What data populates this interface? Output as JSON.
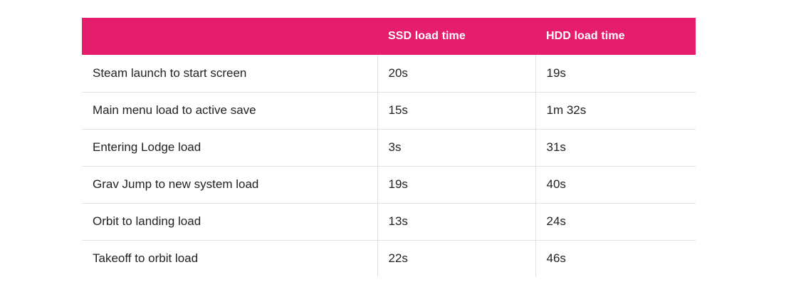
{
  "table": {
    "headers": [
      "",
      "SSD load time",
      "HDD load time"
    ],
    "rows": [
      [
        "Steam launch to start screen",
        "20s",
        "19s"
      ],
      [
        "Main menu load to active save",
        "15s",
        "1m 32s"
      ],
      [
        "Entering Lodge load",
        "3s",
        "31s"
      ],
      [
        "Grav Jump to new system load",
        "19s",
        "40s"
      ],
      [
        "Orbit to landing load",
        "13s",
        "24s"
      ],
      [
        "Takeoff to orbit load",
        "22s",
        "46s"
      ]
    ]
  },
  "colors": {
    "header_background": "#e61c6c",
    "header_text": "#ffffff",
    "body_text": "#222222",
    "divider": "#e2e2e2"
  }
}
